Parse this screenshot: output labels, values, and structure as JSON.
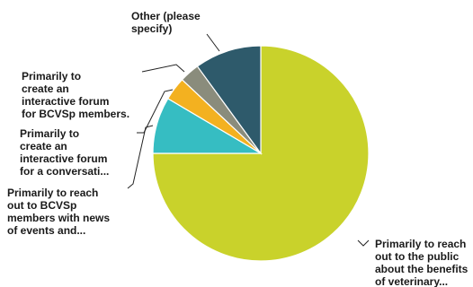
{
  "chart_data": {
    "type": "pie",
    "title": "",
    "legend": "none",
    "slices": [
      {
        "label": "Primarily to reach out to the public about the benefits of veterinary...",
        "value": 75.0,
        "color": "#c9d22b"
      },
      {
        "label": "Primarily to reach out to BCVSp members with news of events and...",
        "value": 8.5,
        "color": "#36bdc2"
      },
      {
        "label": "Primarily to create an interactive forum for a conversati...",
        "value": 3.5,
        "color": "#f3b120"
      },
      {
        "label": "Primarily to create an interactive forum for BCVSp members.",
        "value": 3.0,
        "color": "#8a8c7c"
      },
      {
        "label": "Other (please specify)",
        "value": 10.0,
        "color": "#2e5a6b"
      }
    ]
  }
}
